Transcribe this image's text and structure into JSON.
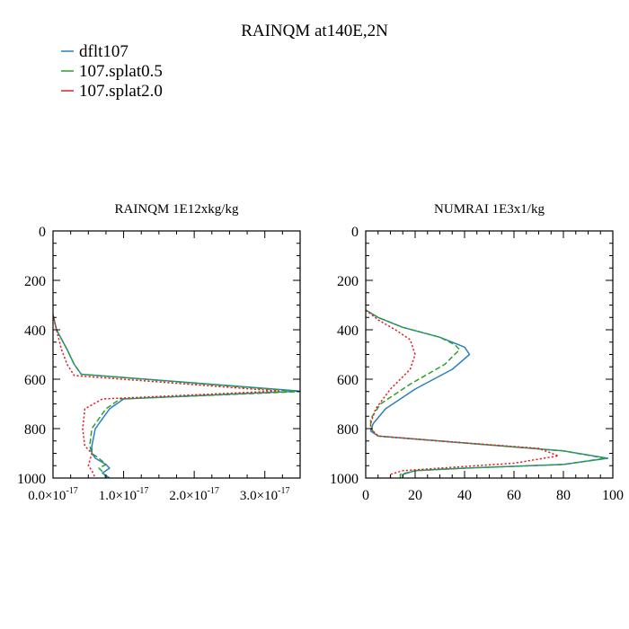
{
  "figure": {
    "title": "RAINQM at140E,2N",
    "legend": [
      {
        "label": "dflt107",
        "color": "#2e7fbf",
        "dash": "solid"
      },
      {
        "label": "107.splat0.5",
        "color": "#2ca02c",
        "dash": "solid"
      },
      {
        "label": "107.splat2.0",
        "color": "#e0202a",
        "dash": "solid"
      }
    ]
  },
  "chart_data": [
    {
      "type": "line",
      "title": "RAINQM  1E12xkg/kg",
      "xlabel": "",
      "ylabel": "",
      "xlim": [
        0,
        3.5e-17
      ],
      "ylim": [
        1000,
        0
      ],
      "xticks": [
        0,
        1e-17,
        2e-17,
        3e-17
      ],
      "xtick_mantissas": [
        "0.0",
        "1.0",
        "2.0",
        "3.0"
      ],
      "xtick_exponent": "-17",
      "yticks": [
        0,
        200,
        400,
        600,
        800,
        1000
      ],
      "series": [
        {
          "name": "dflt107",
          "color": "#2e7fbf",
          "dash": "solid",
          "x": [
            0,
            5e-19,
            2e-18,
            3e-18,
            4e-18,
            3.5e-17,
            1e-17,
            8e-18,
            6e-18,
            5.5e-18,
            5.5e-18,
            6e-18,
            7.5e-18,
            8e-18,
            7e-18,
            8e-18
          ],
          "y": [
            340,
            400,
            480,
            540,
            580,
            648,
            680,
            720,
            800,
            870,
            900,
            920,
            945,
            960,
            980,
            1000
          ]
        },
        {
          "name": "107.splat0.5",
          "color": "#2ca02c",
          "dash": "dashed",
          "x": [
            0,
            5e-19,
            2e-18,
            3e-18,
            4e-18,
            3.5e-17,
            9.5e-18,
            7.5e-18,
            5.5e-18,
            5.2e-18,
            5.5e-18,
            6.5e-18,
            7.5e-18,
            6.5e-18,
            7.2e-18,
            7.5e-18
          ],
          "y": [
            340,
            400,
            480,
            540,
            580,
            650,
            680,
            720,
            800,
            870,
            900,
            920,
            945,
            960,
            980,
            1000
          ]
        },
        {
          "name": "107.splat2.0",
          "color": "#e0202a",
          "dash": "dotted",
          "x": [
            0,
            5e-19,
            1.2e-18,
            2e-18,
            3e-18,
            3.2e-17,
            7e-18,
            4.5e-18,
            4.2e-18,
            4.5e-18,
            5.5e-18,
            5e-18,
            5.5e-18,
            6e-18
          ],
          "y": [
            340,
            400,
            480,
            540,
            585,
            648,
            680,
            720,
            800,
            870,
            900,
            950,
            970,
            1000
          ]
        }
      ]
    },
    {
      "type": "line",
      "title": "NUMRAI  1E3x1/kg",
      "xlabel": "",
      "ylabel": "",
      "xlim": [
        0,
        100
      ],
      "ylim": [
        1000,
        0
      ],
      "xticks": [
        0,
        20,
        40,
        60,
        80,
        100
      ],
      "xtick_labels": [
        "0",
        "20",
        "40",
        "60",
        "80",
        "100"
      ],
      "yticks": [
        0,
        200,
        400,
        600,
        800,
        1000
      ],
      "series": [
        {
          "name": "dflt107",
          "color": "#2e7fbf",
          "dash": "solid",
          "x": [
            0,
            5,
            15,
            30,
            40,
            42,
            35,
            20,
            8,
            3,
            2,
            5,
            30,
            80,
            98,
            80,
            40,
            20,
            15,
            15
          ],
          "y": [
            320,
            350,
            390,
            430,
            470,
            500,
            560,
            640,
            720,
            780,
            810,
            830,
            850,
            890,
            920,
            945,
            960,
            970,
            985,
            1000
          ]
        },
        {
          "name": "107.splat0.5",
          "color": "#2ca02c",
          "dash": "dashed",
          "x": [
            0,
            5,
            15,
            30,
            36,
            38,
            32,
            18,
            6,
            2,
            2,
            5,
            30,
            80,
            97,
            80,
            40,
            20,
            14,
            14
          ],
          "y": [
            320,
            350,
            390,
            430,
            460,
            480,
            540,
            620,
            700,
            760,
            800,
            830,
            850,
            890,
            920,
            945,
            960,
            970,
            985,
            1000
          ]
        },
        {
          "name": "107.splat2.0",
          "color": "#e0202a",
          "dash": "dotted",
          "x": [
            0,
            5,
            12,
            18,
            20,
            18,
            10,
            4,
            2,
            2,
            5,
            30,
            70,
            78,
            60,
            30,
            15,
            10,
            10
          ],
          "y": [
            320,
            360,
            400,
            440,
            500,
            560,
            640,
            720,
            780,
            800,
            830,
            850,
            880,
            910,
            940,
            960,
            970,
            985,
            1000
          ]
        }
      ]
    }
  ]
}
